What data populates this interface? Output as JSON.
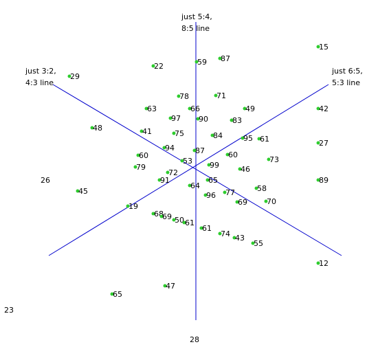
{
  "colors": {
    "line": "#0000cc",
    "point": "#2ecc2e",
    "text": "#000000",
    "background": "#ffffff"
  },
  "lines": [
    {
      "id": "vertical",
      "label_line1": "just 5:4,",
      "label_line2": "8:5 line"
    },
    {
      "id": "left",
      "label_line1": "just 3:2,",
      "label_line2": "4:3 line"
    },
    {
      "id": "right",
      "label_line1": "just 6:5,",
      "label_line2": "5:3 line"
    }
  ],
  "points": [
    "15",
    "87",
    "59",
    "22",
    "29",
    "71",
    "78",
    "66",
    "49",
    "63",
    "42",
    "90",
    "83",
    "97",
    "48",
    "41",
    "75",
    "84",
    "95",
    "61",
    "27",
    "94",
    "87",
    "60",
    "60",
    "73",
    "53",
    "79",
    "99",
    "46",
    "72",
    "91",
    "65",
    "89",
    "64",
    "77",
    "58",
    "45",
    "96",
    "69",
    "70",
    "19",
    "68",
    "69",
    "50",
    "61",
    "61",
    "74",
    "43",
    "55",
    "12",
    "47",
    "65"
  ],
  "labels_only": [
    "26",
    "23",
    "28"
  ]
}
